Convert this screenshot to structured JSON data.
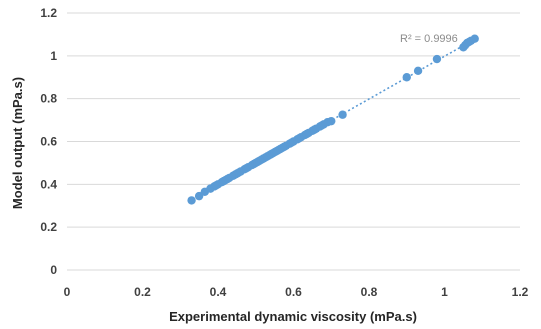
{
  "chart_data": {
    "type": "scatter",
    "xlabel": "Experimental dynamic viscosity (mPa.s)",
    "ylabel": "Model output (mPa.s)",
    "xlim": [
      0,
      1.2
    ],
    "ylim": [
      0,
      1.2
    ],
    "x_ticks": [
      "0",
      "0.2",
      "0.4",
      "0.6",
      "0.8",
      "1",
      "1.2"
    ],
    "y_ticks": [
      "0",
      "0.2",
      "0.4",
      "0.6",
      "0.8",
      "1",
      "1.2"
    ],
    "grid": "horizontal",
    "legend": "none",
    "marker_color": "#5b9bd5",
    "trendline": {
      "style": "dotted",
      "color": "#5b9bd5",
      "slope": 0.998,
      "intercept": 0.0,
      "x_range": [
        0.33,
        1.08
      ],
      "label": "R² = 0.9996"
    },
    "series": [
      {
        "x": [
          0.33,
          0.35,
          0.365,
          0.38,
          0.39,
          0.395,
          0.4,
          0.41,
          0.415,
          0.42,
          0.425,
          0.43,
          0.44,
          0.445,
          0.45,
          0.455,
          0.46,
          0.47,
          0.475,
          0.48,
          0.49,
          0.495,
          0.5,
          0.505,
          0.51,
          0.515,
          0.52,
          0.525,
          0.53,
          0.535,
          0.54,
          0.545,
          0.55,
          0.555,
          0.56,
          0.565,
          0.57,
          0.575,
          0.58,
          0.59,
          0.595,
          0.6,
          0.61,
          0.615,
          0.62,
          0.63,
          0.635,
          0.64,
          0.65,
          0.655,
          0.66,
          0.67,
          0.675,
          0.68,
          0.69,
          0.7,
          0.73,
          0.9,
          0.93,
          0.98,
          1.05,
          1.055,
          1.06,
          1.065,
          1.07,
          1.08
        ],
        "y": [
          0.325,
          0.345,
          0.365,
          0.38,
          0.39,
          0.395,
          0.4,
          0.41,
          0.415,
          0.42,
          0.425,
          0.43,
          0.44,
          0.445,
          0.45,
          0.455,
          0.46,
          0.47,
          0.475,
          0.48,
          0.49,
          0.495,
          0.5,
          0.505,
          0.51,
          0.515,
          0.52,
          0.525,
          0.53,
          0.535,
          0.54,
          0.545,
          0.55,
          0.555,
          0.56,
          0.565,
          0.57,
          0.575,
          0.58,
          0.59,
          0.595,
          0.6,
          0.61,
          0.615,
          0.62,
          0.63,
          0.635,
          0.64,
          0.65,
          0.655,
          0.66,
          0.67,
          0.675,
          0.68,
          0.69,
          0.695,
          0.725,
          0.9,
          0.93,
          0.985,
          1.04,
          1.05,
          1.06,
          1.065,
          1.07,
          1.08
        ]
      }
    ]
  }
}
